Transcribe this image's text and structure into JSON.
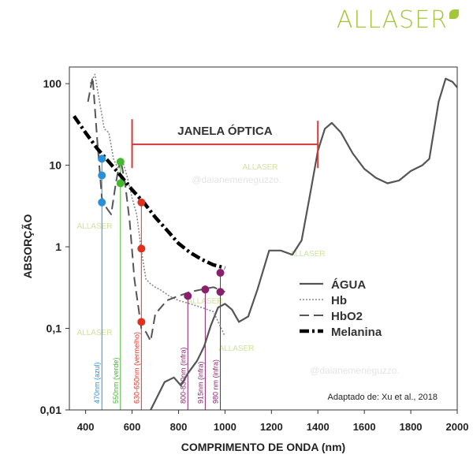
{
  "brand": {
    "name": "ALLASER",
    "leaf_icon": "leaf-icon",
    "color": "#a4c63a"
  },
  "watermarks": {
    "handle": "@daianemeneguzzo.",
    "logo": "ALLASER"
  },
  "chart_data": {
    "type": "line",
    "xlabel": "COMPRIMENTO DE ONDA (nm)",
    "ylabel": "ABSORÇÃO",
    "xlim": [
      330,
      2000
    ],
    "ylim": [
      0.01,
      160
    ],
    "y_scale": "log",
    "x_ticks": [
      400,
      600,
      800,
      1000,
      1200,
      1400,
      1600,
      1800,
      2000
    ],
    "y_ticks": [
      {
        "value": 100,
        "label": "100"
      },
      {
        "value": 10,
        "label": "10"
      },
      {
        "value": 1,
        "label": "1"
      },
      {
        "value": 0.1,
        "label": "0,1"
      },
      {
        "value": 0.01,
        "label": "0,01"
      }
    ],
    "legend": {
      "position": "center-right"
    },
    "series": [
      {
        "name": "ÁGUA",
        "style": "solid",
        "color": "#555555",
        "points": [
          [
            680,
            0.01
          ],
          [
            700,
            0.013
          ],
          [
            740,
            0.022
          ],
          [
            780,
            0.025
          ],
          [
            810,
            0.02
          ],
          [
            840,
            0.028
          ],
          [
            880,
            0.04
          ],
          [
            910,
            0.06
          ],
          [
            940,
            0.11
          ],
          [
            970,
            0.18
          ],
          [
            1000,
            0.2
          ],
          [
            1030,
            0.17
          ],
          [
            1060,
            0.12
          ],
          [
            1100,
            0.14
          ],
          [
            1140,
            0.3
          ],
          [
            1190,
            0.9
          ],
          [
            1240,
            0.9
          ],
          [
            1290,
            0.8
          ],
          [
            1330,
            1.2
          ],
          [
            1370,
            5
          ],
          [
            1400,
            15
          ],
          [
            1430,
            28
          ],
          [
            1460,
            33
          ],
          [
            1500,
            25
          ],
          [
            1550,
            14
          ],
          [
            1600,
            9
          ],
          [
            1650,
            7
          ],
          [
            1700,
            6
          ],
          [
            1750,
            6.5
          ],
          [
            1800,
            8.5
          ],
          [
            1850,
            10
          ],
          [
            1880,
            12
          ],
          [
            1920,
            60
          ],
          [
            1950,
            115
          ],
          [
            1980,
            105
          ],
          [
            2000,
            90
          ]
        ]
      },
      {
        "name": "Hb",
        "style": "dotted",
        "color": "#888888",
        "points": [
          [
            420,
            100
          ],
          [
            440,
            130
          ],
          [
            460,
            60
          ],
          [
            480,
            28
          ],
          [
            500,
            25
          ],
          [
            520,
            12
          ],
          [
            540,
            9
          ],
          [
            560,
            11
          ],
          [
            580,
            7
          ],
          [
            600,
            4
          ],
          [
            620,
            2.5
          ],
          [
            640,
            0.9
          ],
          [
            660,
            0.4
          ],
          [
            680,
            0.35
          ],
          [
            700,
            0.32
          ],
          [
            720,
            0.3
          ],
          [
            760,
            0.25
          ],
          [
            800,
            0.22
          ],
          [
            850,
            0.2
          ],
          [
            900,
            0.18
          ],
          [
            950,
            0.16
          ],
          [
            1000,
            0.08
          ]
        ]
      },
      {
        "name": "HbO2",
        "style": "dash",
        "color": "#555555",
        "points": [
          [
            410,
            60
          ],
          [
            430,
            120
          ],
          [
            450,
            20
          ],
          [
            470,
            4
          ],
          [
            490,
            3
          ],
          [
            510,
            2.5
          ],
          [
            530,
            6
          ],
          [
            550,
            12
          ],
          [
            570,
            6
          ],
          [
            590,
            2
          ],
          [
            610,
            0.4
          ],
          [
            640,
            0.1
          ],
          [
            660,
            0.09
          ],
          [
            680,
            0.07
          ],
          [
            700,
            0.15
          ],
          [
            750,
            0.22
          ],
          [
            800,
            0.25
          ],
          [
            850,
            0.28
          ],
          [
            900,
            0.3
          ],
          [
            950,
            0.32
          ],
          [
            1000,
            0.28
          ]
        ]
      },
      {
        "name": "Melanina",
        "style": "dashdot",
        "color": "#000000",
        "points": [
          [
            350,
            40
          ],
          [
            400,
            25
          ],
          [
            450,
            16
          ],
          [
            500,
            11
          ],
          [
            550,
            7.5
          ],
          [
            600,
            5
          ],
          [
            650,
            3.5
          ],
          [
            700,
            2.3
          ],
          [
            750,
            1.6
          ],
          [
            800,
            1.1
          ],
          [
            850,
            0.85
          ],
          [
            900,
            0.7
          ],
          [
            950,
            0.6
          ],
          [
            1000,
            0.55
          ]
        ]
      }
    ],
    "window": {
      "label": "JANELA ÓPTICA",
      "x_start": 600,
      "x_end": 1400,
      "y": 18,
      "color": "#d23a3a"
    },
    "wavelength_markers": [
      {
        "x": 470,
        "label": "470nm (azul)",
        "color": "#2a8fdb",
        "points": [
          12,
          7.5,
          3.5
        ]
      },
      {
        "x": 550,
        "label": "550nm (verde)",
        "color": "#44b830",
        "points": [
          11,
          6
        ]
      },
      {
        "x": 640,
        "label": "630-650nm (vermelho)",
        "color": "#e03020",
        "points": [
          3.5,
          0.95,
          0.12
        ]
      },
      {
        "x": 840,
        "label": "800-830nm (infra)",
        "color": "#8a1f6b",
        "points": [
          0.25
        ]
      },
      {
        "x": 915,
        "label": "915nm (infra)",
        "color": "#8a1f6b",
        "points": [
          0.3
        ]
      },
      {
        "x": 980,
        "label": "980 nm (infra)",
        "color": "#8a1f6b",
        "points": [
          0.48,
          0.28
        ]
      }
    ],
    "source_note": "Adaptado de: Xu et al., 2018"
  }
}
